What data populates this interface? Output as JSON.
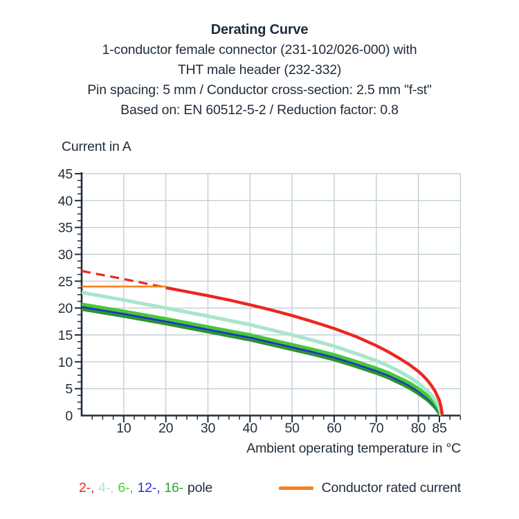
{
  "header": {
    "title": "Derating Curve",
    "subtitle_lines": [
      "1-conductor female connector (231-102/026-000) with",
      "THT male header (232-332)",
      "Pin spacing: 5 mm / Conductor cross-section: 2.5 mm \"f-st\"",
      "Based on: EN 60512-5-2 / Reduction factor: 0.8"
    ]
  },
  "chart_data": {
    "type": "line",
    "title": "Derating Curve",
    "ylabel": "Current in A",
    "xlabel": "Ambient operating temperature in °C",
    "xlim": [
      0,
      90
    ],
    "ylim": [
      0,
      45
    ],
    "x_major_ticks": [
      10,
      20,
      30,
      40,
      50,
      60,
      70,
      80,
      85
    ],
    "x_minor_step": 2.5,
    "y_major_ticks": [
      0,
      5,
      10,
      15,
      20,
      25,
      30,
      35,
      40,
      45
    ],
    "y_minor_step": 1.25,
    "grid": true,
    "grid_color": "#c3cfd6",
    "axis_color": "#1f2c3a",
    "max_temperature_c": 85,
    "series": [
      {
        "name": "16-pole",
        "color": "#2c9330",
        "width": 5,
        "dash": "",
        "points": [
          [
            0,
            19.8
          ],
          [
            10,
            18.5
          ],
          [
            20,
            17.1
          ],
          [
            30,
            15.6
          ],
          [
            40,
            14.1
          ],
          [
            50,
            12.3
          ],
          [
            55,
            11.4
          ],
          [
            60,
            10.4
          ],
          [
            65,
            9.2
          ],
          [
            70,
            7.9
          ],
          [
            73,
            7.0
          ],
          [
            76,
            5.9
          ],
          [
            78,
            5.1
          ],
          [
            80,
            4.1
          ],
          [
            82,
            3.0
          ],
          [
            83,
            2.3
          ],
          [
            84,
            1.5
          ],
          [
            85,
            0.4
          ],
          [
            85.25,
            0
          ]
        ]
      },
      {
        "name": "12-pole",
        "color": "#2130cf",
        "width": 3.4,
        "dash": "",
        "points": [
          [
            0,
            20.25
          ],
          [
            10,
            18.95
          ],
          [
            20,
            17.55
          ],
          [
            30,
            16.05
          ],
          [
            40,
            14.55
          ],
          [
            50,
            12.75
          ],
          [
            55,
            11.85
          ],
          [
            60,
            10.85
          ],
          [
            65,
            9.65
          ],
          [
            70,
            8.35
          ],
          [
            73,
            7.45
          ],
          [
            76,
            6.35
          ],
          [
            78,
            5.55
          ],
          [
            80,
            4.55
          ],
          [
            82,
            3.4
          ],
          [
            83,
            2.7
          ],
          [
            84,
            1.85
          ],
          [
            85,
            0.7
          ],
          [
            85.3,
            0
          ]
        ]
      },
      {
        "name": "6-pole",
        "color": "#46c838",
        "width": 5,
        "dash": "",
        "points": [
          [
            0,
            20.7
          ],
          [
            10,
            19.4
          ],
          [
            20,
            18.0
          ],
          [
            30,
            16.5
          ],
          [
            40,
            15.0
          ],
          [
            50,
            13.2
          ],
          [
            55,
            12.3
          ],
          [
            60,
            11.3
          ],
          [
            65,
            10.1
          ],
          [
            70,
            8.8
          ],
          [
            73,
            7.9
          ],
          [
            76,
            6.8
          ],
          [
            78,
            6.0
          ],
          [
            80,
            5.0
          ],
          [
            82,
            3.8
          ],
          [
            83,
            3.1
          ],
          [
            84,
            2.2
          ],
          [
            85,
            1.0
          ],
          [
            85.4,
            0
          ]
        ]
      },
      {
        "name": "4-pole",
        "color": "#a9e6c9",
        "width": 5.2,
        "dash": "",
        "points": [
          [
            0,
            22.9
          ],
          [
            10,
            21.5
          ],
          [
            20,
            20.0
          ],
          [
            30,
            18.5
          ],
          [
            40,
            16.9
          ],
          [
            50,
            15.0
          ],
          [
            55,
            14.0
          ],
          [
            60,
            12.9
          ],
          [
            65,
            11.6
          ],
          [
            70,
            10.2
          ],
          [
            73,
            9.2
          ],
          [
            76,
            8.0
          ],
          [
            78,
            7.1
          ],
          [
            80,
            6.0
          ],
          [
            82,
            4.7
          ],
          [
            83,
            3.9
          ],
          [
            84,
            2.9
          ],
          [
            85,
            1.5
          ],
          [
            85.5,
            0
          ]
        ]
      },
      {
        "name": "2-pole",
        "color": "#ee2520",
        "width": 4.4,
        "dash": "",
        "points": [
          [
            20,
            23.8
          ],
          [
            25,
            23.05
          ],
          [
            30,
            22.3
          ],
          [
            35,
            21.5
          ],
          [
            40,
            20.6
          ],
          [
            45,
            19.65
          ],
          [
            50,
            18.6
          ],
          [
            55,
            17.45
          ],
          [
            60,
            16.2
          ],
          [
            65,
            14.75
          ],
          [
            70,
            13.0
          ],
          [
            73,
            11.8
          ],
          [
            76,
            10.4
          ],
          [
            78,
            9.4
          ],
          [
            80,
            8.2
          ],
          [
            81,
            7.5
          ],
          [
            82,
            6.7
          ],
          [
            83,
            5.7
          ],
          [
            84,
            4.5
          ],
          [
            85,
            2.8
          ],
          [
            85.4,
            1.6
          ],
          [
            85.7,
            0
          ]
        ]
      },
      {
        "name": "2-pole-extrapolated",
        "color": "#ee2520",
        "width": 3.2,
        "dash": "13 8",
        "points": [
          [
            0,
            26.9
          ],
          [
            5,
            26.15
          ],
          [
            10,
            25.4
          ],
          [
            15,
            24.6
          ],
          [
            20,
            23.85
          ]
        ]
      },
      {
        "name": "conductor-rated-current",
        "color": "#f6821f",
        "width": 2.6,
        "dash": "",
        "points": [
          [
            0,
            24
          ],
          [
            20,
            24
          ]
        ]
      }
    ]
  },
  "legend": {
    "pole_items": [
      {
        "label": "2-,",
        "color": "#ee2722"
      },
      {
        "label": "4-,",
        "color": "#a9e8cc"
      },
      {
        "label": "6-,",
        "color": "#3fd338"
      },
      {
        "label": "12-,",
        "color": "#2b31dd"
      },
      {
        "label": "16-",
        "color": "#2fa42f"
      }
    ],
    "pole_suffix": "pole",
    "rated_current_label": "Conductor rated current",
    "rated_current_color": "#f6821f"
  }
}
